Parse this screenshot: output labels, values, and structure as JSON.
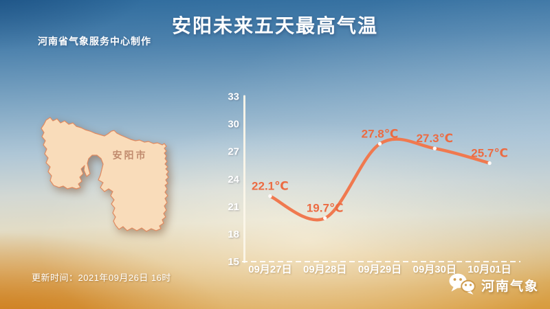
{
  "header": {
    "title": "安阳未来五天最高气温",
    "subtitle": "河南省气象服务中心制作"
  },
  "map": {
    "label": "安阳市"
  },
  "footer": {
    "update_time": "更新时间：2021年09月26日 16时",
    "brand": "河南气象"
  },
  "colors": {
    "line": "#f0794f",
    "value_label": "#ec6b42",
    "axis": "#fcf7ea",
    "tick_text": "#ffffff",
    "map_fill": "#f9dcba",
    "map_stroke": "#e18a5f",
    "map_label": "#c08a6d"
  },
  "chart_data": {
    "type": "line",
    "title": "安阳未来五天最高气温",
    "categories": [
      "09月27日",
      "09月28日",
      "09月29日",
      "09月30日",
      "10月01日"
    ],
    "values": [
      22.1,
      19.7,
      27.8,
      27.3,
      25.7
    ],
    "point_labels": [
      "22.1℃",
      "19.7℃",
      "27.8℃",
      "27.3℃",
      "25.7℃"
    ],
    "unit": "℃",
    "y_ticks": [
      33,
      30,
      27,
      24,
      21,
      18,
      15
    ],
    "ylim": [
      15,
      33
    ],
    "xlabel": "",
    "ylabel": "",
    "grid": false,
    "legend": false
  }
}
